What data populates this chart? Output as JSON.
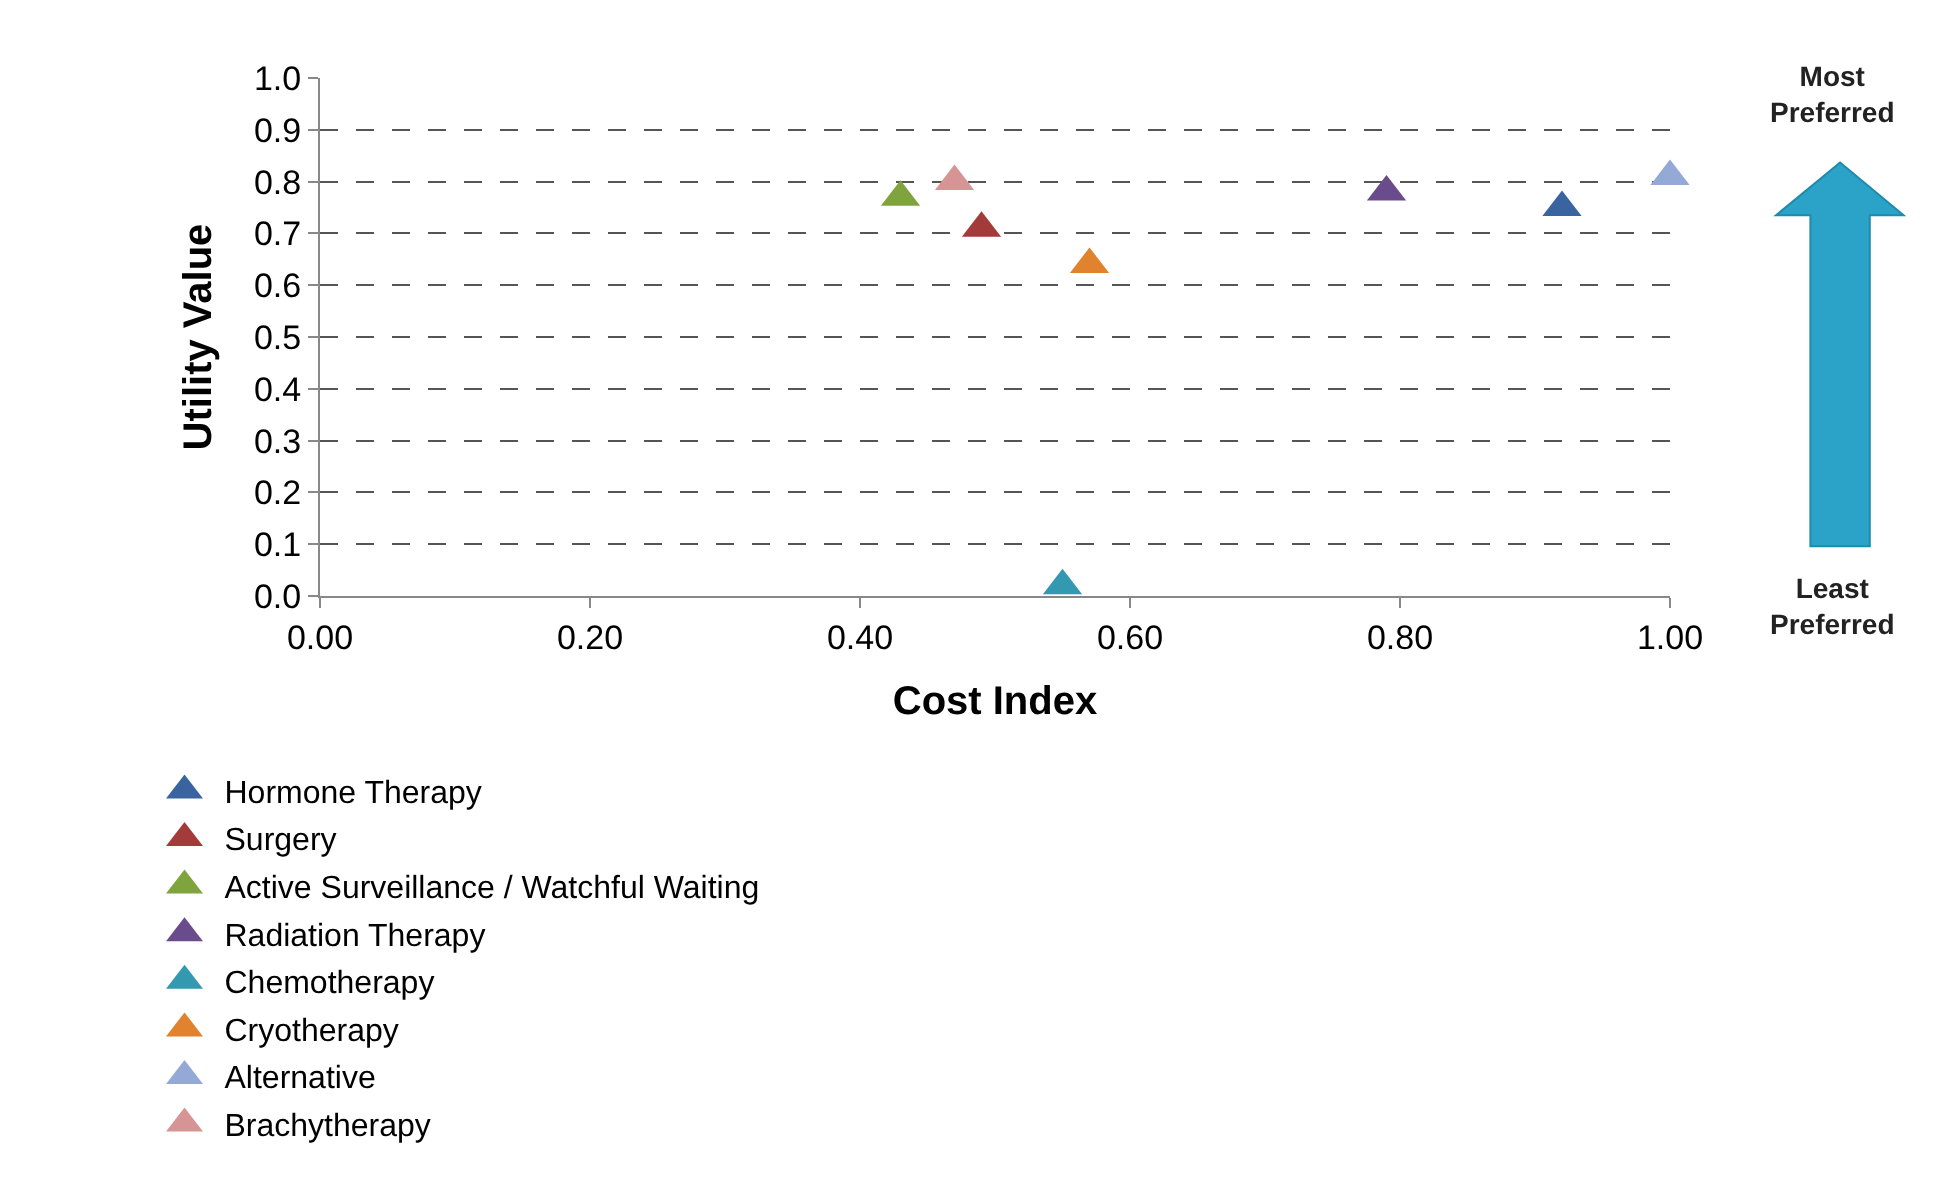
{
  "chart_data": {
    "type": "scatter",
    "xlabel": "Cost Index",
    "ylabel": "Utility Value",
    "xlim": [
      0,
      1
    ],
    "xticks": [
      {
        "value": 0,
        "label": "0.00"
      },
      {
        "value": 0.2,
        "label": "0.20"
      },
      {
        "value": 0.4,
        "label": "0.40"
      },
      {
        "value": 0.6,
        "label": "0.60"
      },
      {
        "value": 0.8,
        "label": "0.80"
      },
      {
        "value": 1,
        "label": "1.00"
      }
    ],
    "ylim": [
      0,
      1
    ],
    "yticks": [
      {
        "value": 0,
        "label": "0.0"
      },
      {
        "value": 0.1,
        "label": "0.1"
      },
      {
        "value": 0.2,
        "label": "0.2"
      },
      {
        "value": 0.3,
        "label": "0.3"
      },
      {
        "value": 0.4,
        "label": "0.4"
      },
      {
        "value": 0.5,
        "label": "0.5"
      },
      {
        "value": 0.6,
        "label": "0.6"
      },
      {
        "value": 0.7,
        "label": "0.7"
      },
      {
        "value": 0.8,
        "label": "0.8"
      },
      {
        "value": 0.9,
        "label": "0.9"
      },
      {
        "value": 1,
        "label": "1.0"
      }
    ],
    "grid": "y",
    "legend": "bottom",
    "marker": "triangle",
    "annotations": [
      "Most Preferred",
      "Least Preferred"
    ],
    "series": [
      {
        "name": "Hormone Therapy",
        "color": "#3a64a0",
        "x": [
          0.92
        ],
        "values": [
          0.75
        ]
      },
      {
        "name": "Surgery",
        "color": "#a33b3a",
        "x": [
          0.49
        ],
        "values": [
          0.71
        ]
      },
      {
        "name": "Active Surveillance / Watchful Waiting",
        "color": "#7fa43e",
        "x": [
          0.43
        ],
        "values": [
          0.77
        ]
      },
      {
        "name": "Radiation Therapy",
        "color": "#6a4c8c",
        "x": [
          0.79
        ],
        "values": [
          0.78
        ]
      },
      {
        "name": "Chemotherapy",
        "color": "#3299b0",
        "x": [
          0.55
        ],
        "values": [
          0.02
        ]
      },
      {
        "name": "Cryotherapy",
        "color": "#e0822e",
        "x": [
          0.57
        ],
        "values": [
          0.64
        ]
      },
      {
        "name": "Alternative",
        "color": "#94a9d6",
        "x": [
          1.0
        ],
        "values": [
          0.81
        ]
      },
      {
        "name": "Brachytherapy",
        "color": "#d69594",
        "x": [
          0.47
        ],
        "values": [
          0.8
        ]
      }
    ]
  }
}
